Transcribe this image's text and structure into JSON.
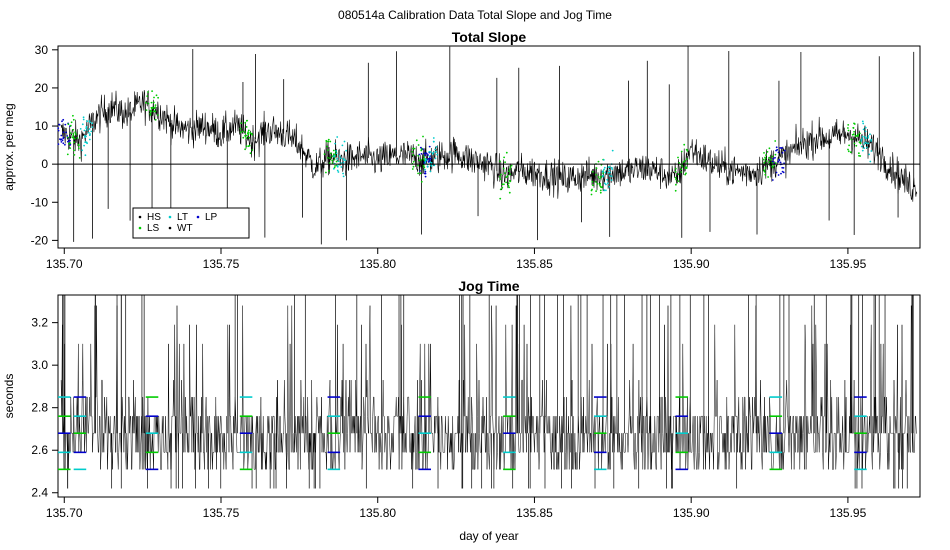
{
  "figure_title": "080514a   Calibration Data Total Slope and Jog Time",
  "colors": {
    "black": "#000000",
    "HS": "#000000",
    "LS": "#00cc00",
    "LT": "#00cccc",
    "WT": "#000000",
    "LP": "#0000cc",
    "zero_line": "#000000"
  },
  "chart_data": [
    {
      "type": "line",
      "title": "Total Slope",
      "xlabel": "",
      "ylabel": "approx. per meg",
      "xlim": [
        135.698,
        135.973
      ],
      "ylim": [
        -22,
        31
      ],
      "x_ticks": [
        "135.70",
        "135.75",
        "135.80",
        "135.85",
        "135.90",
        "135.95"
      ],
      "y_ticks": [
        "-20",
        "-10",
        "0",
        "10",
        "20",
        "30"
      ],
      "grid": false,
      "reference_line_y": 0,
      "legend": {
        "placement": "bottom-left",
        "entries": [
          "HS",
          "LT",
          "LP",
          "LS",
          "WT"
        ]
      },
      "series": [
        {
          "name": "",
          "x": [
            135.7,
            135.705,
            135.71,
            135.715,
            135.72,
            135.725,
            135.73,
            135.735,
            135.74,
            135.745,
            135.75,
            135.755,
            135.76,
            135.765,
            135.77,
            135.775,
            135.78,
            135.785,
            135.79,
            135.795,
            135.8,
            135.805,
            135.81,
            135.815,
            135.82,
            135.825,
            135.83,
            135.835,
            135.84,
            135.845,
            135.85,
            135.855,
            135.86,
            135.865,
            135.87,
            135.875,
            135.88,
            135.885,
            135.89,
            135.895,
            135.9,
            135.905,
            135.91,
            135.915,
            135.92,
            135.925,
            135.93,
            135.935,
            135.94,
            135.945,
            135.95,
            135.955,
            135.96,
            135.965,
            135.97
          ],
          "values": [
            8,
            6,
            12,
            15,
            13,
            16,
            14,
            10,
            9,
            10,
            8,
            10,
            6,
            9,
            8,
            5,
            -1,
            2,
            1,
            2,
            1,
            2,
            2,
            1,
            2,
            3,
            1,
            0,
            -3,
            -2,
            -2,
            -3,
            -4,
            -3,
            -3,
            -2,
            -2,
            -1,
            -2,
            -4,
            4,
            1,
            -1,
            -2,
            -2,
            0,
            2,
            5,
            7,
            7,
            8,
            6,
            3,
            -2,
            -6
          ]
        }
      ]
    },
    {
      "type": "line",
      "title": "Jog Time",
      "xlabel": "day of year",
      "ylabel": "seconds",
      "xlim": [
        135.698,
        135.973
      ],
      "ylim": [
        2.38,
        3.33
      ],
      "x_ticks": [
        "135.70",
        "135.75",
        "135.80",
        "135.85",
        "135.90",
        "135.95"
      ],
      "y_ticks": [
        "2.4",
        "2.6",
        "2.8",
        "3.0",
        "3.2"
      ],
      "grid": false,
      "levels": [
        2.51,
        2.59,
        2.68,
        2.76,
        2.85,
        2.93,
        3.1,
        3.19,
        3.28
      ],
      "series": [
        {
          "name": "",
          "x": [
            135.7,
            135.75,
            135.8,
            135.85,
            135.9,
            135.95,
            135.97
          ],
          "values": [
            2.68,
            2.68,
            2.68,
            2.68,
            2.68,
            2.68,
            2.68
          ]
        }
      ]
    }
  ]
}
